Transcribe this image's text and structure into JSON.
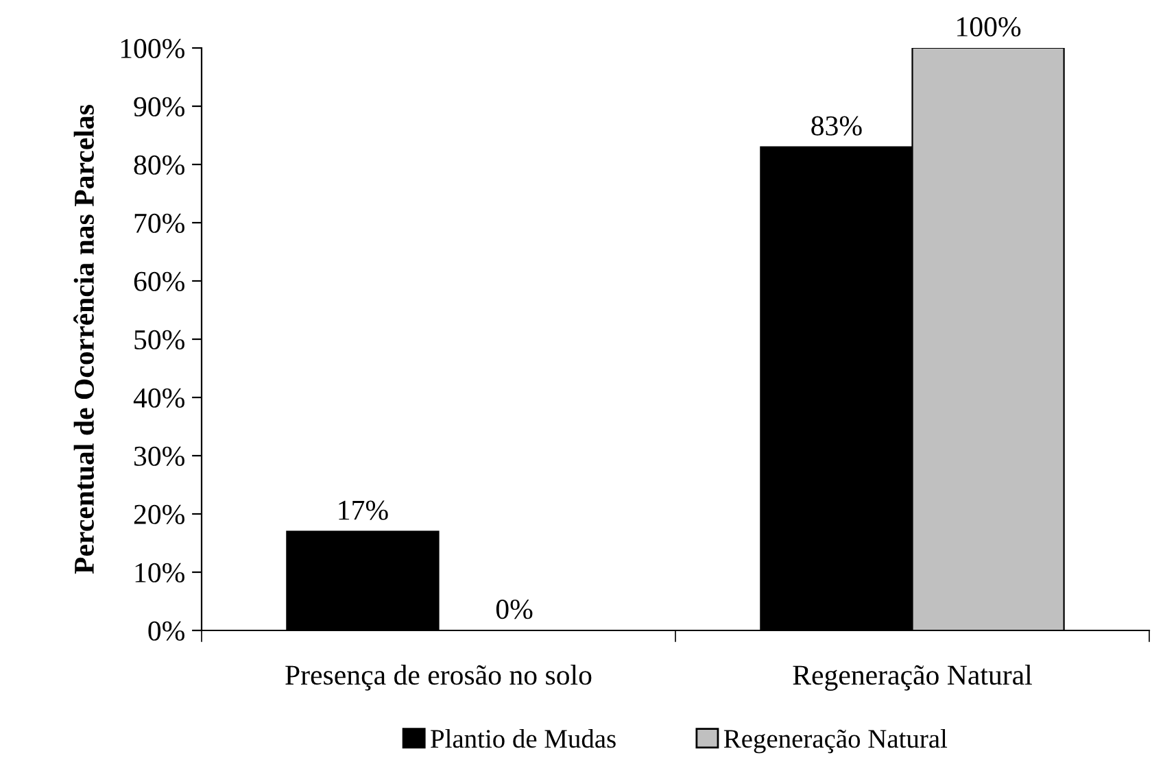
{
  "chart_data": {
    "type": "bar",
    "ylabel": "Percentual de Ocorrência nas Parcelas",
    "categories": [
      "Presença de erosão no solo",
      "Regeneração Natural"
    ],
    "series": [
      {
        "name": "Plantio de Mudas",
        "color": "#000000",
        "values": [
          17,
          83
        ],
        "value_labels": [
          "17%",
          "83%"
        ]
      },
      {
        "name": "Regeneração Natural",
        "color": "#c0c0c0",
        "values": [
          0,
          100
        ],
        "value_labels": [
          "0%",
          "100%"
        ]
      }
    ],
    "ylim": [
      0,
      100
    ],
    "yticks": [
      {
        "value": 0,
        "label": "0%"
      },
      {
        "value": 10,
        "label": "10%"
      },
      {
        "value": 20,
        "label": "20%"
      },
      {
        "value": 30,
        "label": "30%"
      },
      {
        "value": 40,
        "label": "40%"
      },
      {
        "value": 50,
        "label": "50%"
      },
      {
        "value": 60,
        "label": "60%"
      },
      {
        "value": 70,
        "label": "70%"
      },
      {
        "value": 80,
        "label": "80%"
      },
      {
        "value": 90,
        "label": "90%"
      },
      {
        "value": 100,
        "label": "100%"
      }
    ],
    "grid": false,
    "legend": "bottom"
  }
}
